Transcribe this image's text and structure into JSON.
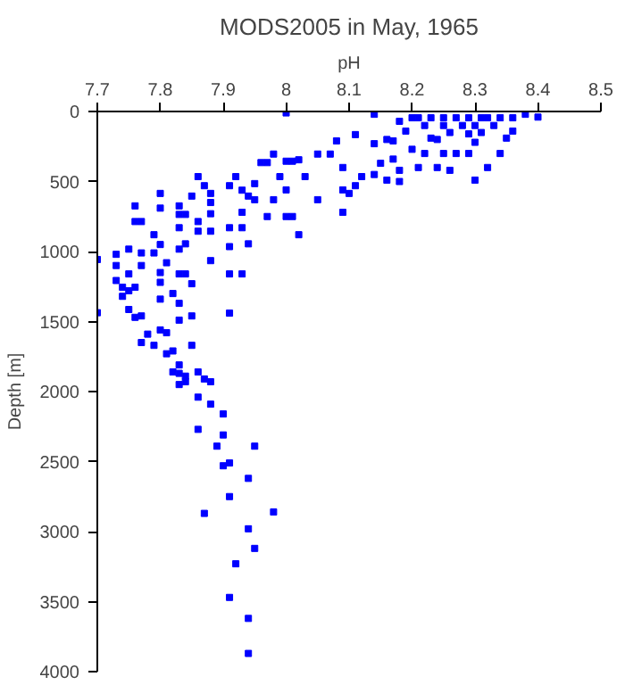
{
  "chart_data": {
    "type": "scatter",
    "title": "MODS2005 in May, 1965",
    "xlabel": "pH",
    "ylabel": "Depth [m]",
    "xlim": [
      7.7,
      8.5
    ],
    "ylim": [
      4000,
      0
    ],
    "xticks": [
      7.7,
      7.8,
      7.9,
      8,
      8.1,
      8.2,
      8.3,
      8.4,
      8.5
    ],
    "yticks": [
      0,
      500,
      1000,
      1500,
      2000,
      2500,
      3000,
      3500,
      4000
    ],
    "grid": false,
    "marker": "square",
    "series": [
      {
        "color": "#0000ff",
        "x": [
          7.7,
          7.73,
          7.73,
          7.75,
          7.76,
          7.76,
          7.77,
          7.77,
          7.77,
          7.79,
          7.79,
          7.8,
          7.8,
          7.8,
          7.81,
          7.83,
          7.83,
          7.83,
          7.83,
          7.84,
          7.84,
          7.85,
          7.86,
          7.86,
          7.86,
          7.87,
          7.88,
          7.88,
          7.88,
          7.88,
          7.88,
          7.91,
          7.91,
          7.91,
          7.92,
          7.93,
          7.93,
          7.93,
          7.94,
          7.94,
          7.95,
          7.95,
          7.96,
          7.97,
          7.97,
          7.98,
          7.98,
          7.99,
          8.0,
          8.0,
          8.0,
          8.0,
          8.01,
          8.01,
          8.02,
          8.02,
          8.03,
          8.05,
          8.05,
          8.07,
          8.08,
          8.09,
          8.09,
          8.09,
          8.1,
          8.11,
          8.11,
          8.12,
          8.14,
          8.14,
          8.14,
          8.15,
          8.16,
          8.16,
          8.17,
          8.17,
          8.18,
          8.18,
          8.18,
          8.19,
          8.2,
          8.21,
          8.22,
          8.23,
          8.24,
          8.25,
          8.26,
          8.27,
          8.29,
          8.3,
          8.32,
          8.34,
          8.35,
          8.36,
          8.38,
          8.4,
          8.2,
          8.21,
          8.23,
          8.25,
          8.27,
          8.29,
          8.31,
          8.32,
          8.34,
          8.36,
          8.22,
          8.25,
          8.28,
          8.3,
          8.33,
          8.26,
          8.29,
          8.31,
          8.24,
          8.3,
          7.7,
          7.73,
          7.74,
          7.75,
          7.75,
          7.76,
          7.74,
          7.75,
          7.76,
          7.77,
          7.77,
          7.78,
          7.79,
          7.8,
          7.8,
          7.8,
          7.8,
          7.81,
          7.81,
          7.82,
          7.82,
          7.82,
          7.83,
          7.83,
          7.83,
          7.83,
          7.83,
          7.83,
          7.84,
          7.84,
          7.84,
          7.85,
          7.85,
          7.85,
          7.86,
          7.86,
          7.86,
          7.87,
          7.88,
          7.88,
          7.89,
          7.9,
          7.9,
          7.9,
          7.91,
          7.91,
          7.91,
          7.93,
          7.94,
          7.95,
          7.91,
          7.87,
          7.98,
          7.94,
          7.95,
          7.92,
          7.91,
          7.94,
          7.94
        ],
        "values": [
          1057,
          1020,
          1100,
          983,
          674,
          786,
          786,
          1010,
          1100,
          880,
          1010,
          585,
          690,
          950,
          1080,
          674,
          735,
          830,
          983,
          735,
          945,
          604,
          465,
          786,
          855,
          530,
          585,
          650,
          730,
          855,
          1065,
          530,
          830,
          965,
          465,
          562,
          720,
          830,
          604,
          945,
          515,
          630,
          365,
          365,
          750,
          304,
          630,
          465,
          750,
          10,
          355,
          560,
          355,
          750,
          345,
          880,
          465,
          304,
          630,
          304,
          210,
          400,
          560,
          720,
          585,
          165,
          530,
          465,
          20,
          230,
          450,
          370,
          200,
          490,
          210,
          340,
          70,
          420,
          500,
          140,
          270,
          400,
          300,
          190,
          400,
          300,
          420,
          300,
          300,
          490,
          400,
          300,
          190,
          140,
          20,
          40,
          45,
          45,
          45,
          45,
          45,
          45,
          45,
          45,
          45,
          45,
          100,
          100,
          100,
          100,
          100,
          150,
          160,
          150,
          200,
          220,
          1437,
          1207,
          1255,
          1160,
          1280,
          1255,
          1320,
          1414,
          1470,
          1460,
          1650,
          1590,
          1670,
          1150,
          1220,
          1340,
          1560,
          1580,
          1730,
          1300,
          1710,
          1860,
          1160,
          1370,
          1490,
          1810,
          1870,
          1950,
          1160,
          1890,
          1930,
          1230,
          1460,
          1670,
          1860,
          2040,
          2270,
          1910,
          1930,
          2090,
          2390,
          2160,
          2310,
          2530,
          1160,
          1440,
          2510,
          1160,
          2620,
          2390,
          2750,
          2870,
          2860,
          2980,
          3120,
          3230,
          3470,
          3620,
          3870
        ]
      }
    ]
  }
}
